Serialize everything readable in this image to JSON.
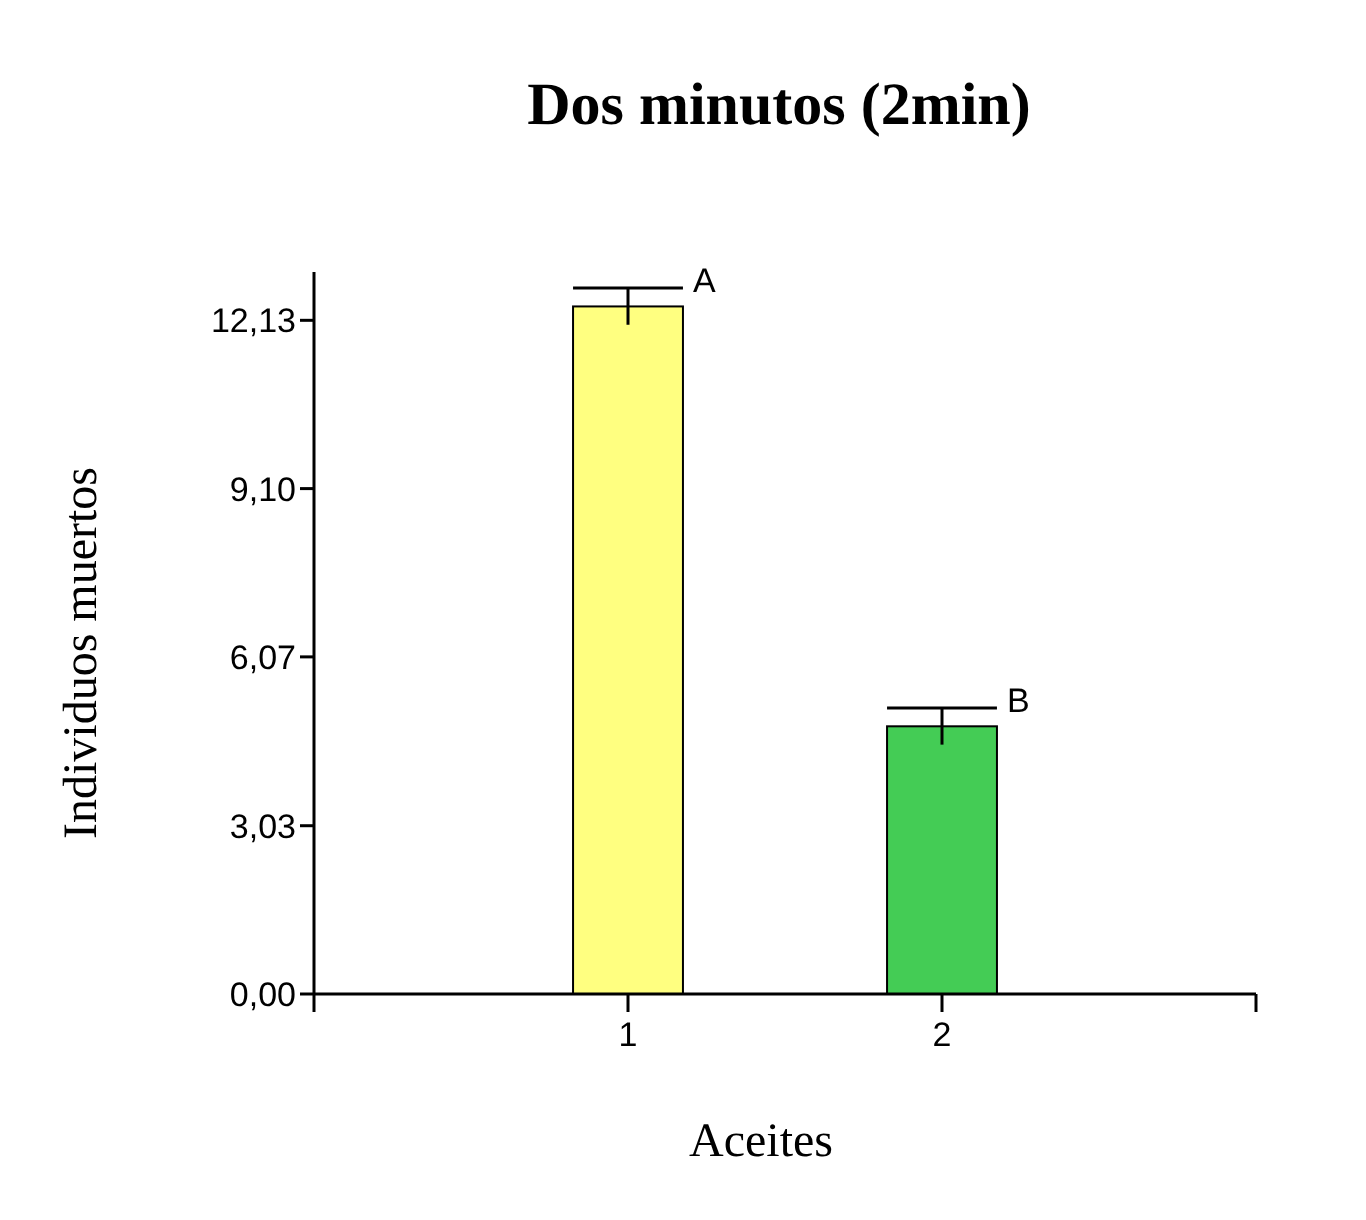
{
  "chart_data": {
    "type": "bar",
    "title": "Dos minutos (2min)",
    "xlabel": "Aceites",
    "ylabel": "Individuos muertos",
    "x": [
      1,
      2
    ],
    "values": [
      12.38,
      4.82
    ],
    "colors": [
      "#ffff80",
      "#44cc55"
    ],
    "errors": [
      0.33,
      0.33
    ],
    "xlim": [
      0,
      3
    ],
    "xticks": [
      {
        "value": 0,
        "label": null
      },
      1,
      2,
      {
        "value": 3,
        "label": null
      }
    ],
    "ylim": [
      0,
      13
    ],
    "yticks": [
      {
        "value": 0,
        "label": "0,00"
      },
      {
        "value": 3.03,
        "label": "3,03"
      },
      {
        "value": 6.07,
        "label": "6,07"
      },
      {
        "value": 9.1,
        "label": "9,10"
      },
      {
        "value": 12.13,
        "label": "12,13"
      }
    ],
    "annotations": [
      {
        "text": "A",
        "x": 1,
        "y": 12.71
      },
      {
        "text": "B",
        "x": 2,
        "y": 5.15
      }
    ],
    "grid": false
  }
}
